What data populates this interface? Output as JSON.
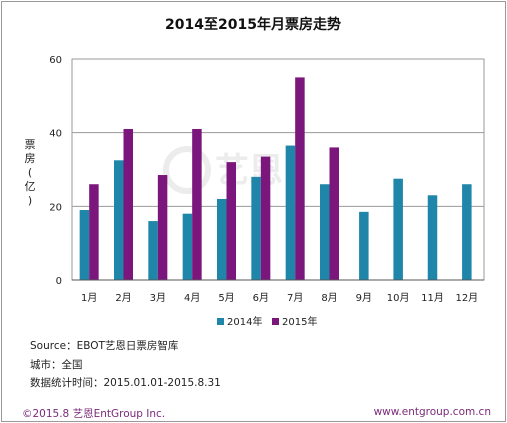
{
  "chart_data": {
    "type": "bar",
    "title": "2014至2015年月票房走势",
    "ylabel": [
      "票",
      "房",
      "(",
      "亿",
      ")"
    ],
    "ylim": [
      0,
      60
    ],
    "yticks": [
      0,
      20,
      40,
      60
    ],
    "categories": [
      "1月",
      "2月",
      "3月",
      "4月",
      "5月",
      "6月",
      "7月",
      "8月",
      "9月",
      "10月",
      "11月",
      "12月"
    ],
    "series": [
      {
        "name": "2014年",
        "color": "#1f86a9",
        "values": [
          19,
          32.5,
          16,
          18,
          22,
          28,
          36.5,
          26,
          18.5,
          27.5,
          23,
          26
        ]
      },
      {
        "name": "2015年",
        "color": "#7b177c",
        "values": [
          26,
          41,
          28.5,
          41,
          32,
          33.5,
          55,
          36,
          null,
          null,
          null,
          null
        ]
      }
    ],
    "grid": true,
    "legend": "bottom-center",
    "watermark": "艺恩"
  },
  "notes": {
    "source": "Source：EBOT艺恩日票房智库",
    "city": "城市：全国",
    "period": "数据统计时间：2015.01.01-2015.8.31"
  },
  "footer": {
    "left": "©2015.8 艺恩EntGroup Inc.",
    "right": "www.entgroup.com.cn"
  }
}
